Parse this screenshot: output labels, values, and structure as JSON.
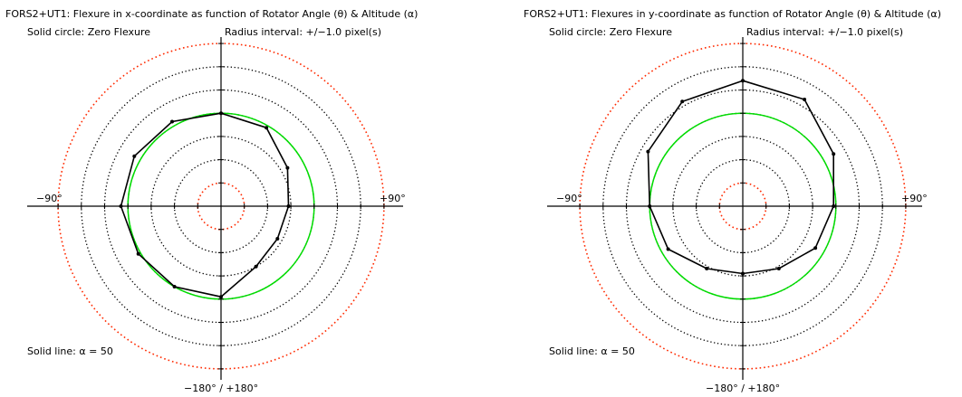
{
  "chart_data": [
    {
      "type": "polar-line",
      "title": "FORS2+UT1: Flexure in x-coordinate as function of Rotator Angle (θ) & Altitude (α)",
      "legend_circle": "Solid circle: Zero Flexure",
      "radius_interval": "Radius interval: +/−1.0 pixel(s)",
      "series_label": "Solid line: α = 50",
      "axis_labels": {
        "left": "−90°",
        "right": "+90°",
        "bottom": "−180° / +180°"
      },
      "radius_interval_value": 1.0,
      "zero_flexure_radius": 4,
      "rings": [
        1,
        2,
        3,
        4,
        5,
        6,
        7
      ],
      "series": [
        {
          "angles_deg": [
            0,
            30,
            60,
            90,
            120,
            150,
            180,
            -150,
            -120,
            -90,
            -60,
            -30
          ],
          "r": [
            4.0,
            3.9,
            3.3,
            2.9,
            2.8,
            3.0,
            3.9,
            4.0,
            4.1,
            4.3,
            4.3,
            4.2
          ]
        }
      ]
    },
    {
      "type": "polar-line",
      "title": "FORS2+UT1: Flexures in y-coordinate as function of Rotator Angle (θ) & Altitude (α)",
      "legend_circle": "Solid circle: Zero Flexure",
      "radius_interval": "Radius interval: +/−1.0 pixel(s)",
      "series_label": "Solid line: α = 50",
      "axis_labels": {
        "left": "−90°",
        "right": "+90°",
        "bottom": "−180° / +180°"
      },
      "radius_interval_value": 1.0,
      "zero_flexure_radius": 4,
      "rings": [
        1,
        2,
        3,
        4,
        5,
        6,
        7
      ],
      "series": [
        {
          "angles_deg": [
            0,
            30,
            60,
            90,
            120,
            150,
            180,
            -150,
            -120,
            -90,
            -60,
            -30
          ],
          "r": [
            5.4,
            5.3,
            4.5,
            3.9,
            3.6,
            3.1,
            2.9,
            3.1,
            3.7,
            4.0,
            4.7,
            5.2
          ]
        }
      ]
    }
  ]
}
